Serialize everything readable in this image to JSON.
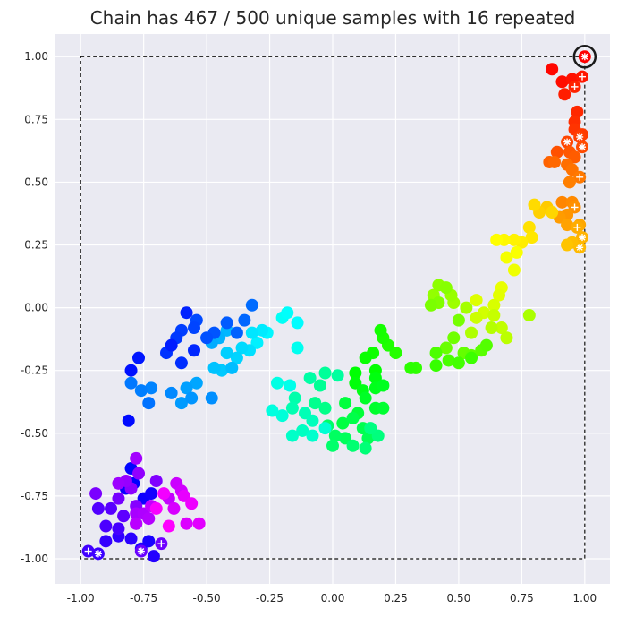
{
  "chart_data": {
    "type": "scatter",
    "title": "Chain has 467 / 500 unique samples with 16 repeated",
    "xlabel": "",
    "ylabel": "",
    "xlim": [
      -1.1,
      1.1
    ],
    "ylim": [
      -1.1,
      1.09
    ],
    "xticks": [
      "-1.00",
      "-0.75",
      "-0.50",
      "-0.25",
      "0.00",
      "0.25",
      "0.50",
      "0.75",
      "1.00"
    ],
    "yticks": [
      "-1.00",
      "-0.75",
      "-0.50",
      "-0.25",
      "0.00",
      "0.25",
      "0.50",
      "0.75",
      "1.00"
    ],
    "grid": true,
    "background_color": "#eaeaf2",
    "colormap": "hsv (by chain order)",
    "bounds": {
      "x": [
        -1,
        1
      ],
      "y": [
        -1,
        1
      ],
      "style": "dashed black"
    },
    "highlight": {
      "x": 1.0,
      "y": 1.0,
      "style": "black ring"
    },
    "repeat_markers": [
      "+",
      "*"
    ],
    "points": [
      [
        1.0,
        1.0,
        "*"
      ],
      [
        0.87,
        0.95
      ],
      [
        0.91,
        0.9
      ],
      [
        0.95,
        0.91
      ],
      [
        0.99,
        0.92,
        "+"
      ],
      [
        0.92,
        0.85
      ],
      [
        0.96,
        0.88,
        "+"
      ],
      [
        0.97,
        0.78
      ],
      [
        0.96,
        0.74
      ],
      [
        0.96,
        0.71
      ],
      [
        0.99,
        0.69
      ],
      [
        0.98,
        0.68,
        "*"
      ],
      [
        0.93,
        0.66,
        "*"
      ],
      [
        0.99,
        0.64,
        "*"
      ],
      [
        0.89,
        0.62
      ],
      [
        0.94,
        0.62
      ],
      [
        0.96,
        0.6
      ],
      [
        0.86,
        0.58
      ],
      [
        0.88,
        0.58
      ],
      [
        0.93,
        0.57
      ],
      [
        0.95,
        0.55
      ],
      [
        0.98,
        0.52,
        "+"
      ],
      [
        0.94,
        0.5
      ],
      [
        0.91,
        0.42
      ],
      [
        0.95,
        0.42
      ],
      [
        0.96,
        0.4,
        "+"
      ],
      [
        0.93,
        0.37
      ],
      [
        0.9,
        0.36
      ],
      [
        0.93,
        0.33
      ],
      [
        0.98,
        0.33
      ],
      [
        0.97,
        0.32,
        "+"
      ],
      [
        0.99,
        0.28,
        "*"
      ],
      [
        0.98,
        0.24,
        "*"
      ],
      [
        0.95,
        0.26
      ],
      [
        0.93,
        0.25
      ],
      [
        0.85,
        0.4
      ],
      [
        0.82,
        0.38
      ],
      [
        0.87,
        0.38
      ],
      [
        0.8,
        0.41
      ],
      [
        0.78,
        0.32
      ],
      [
        0.79,
        0.28
      ],
      [
        0.75,
        0.26
      ],
      [
        0.72,
        0.27
      ],
      [
        0.68,
        0.27
      ],
      [
        0.65,
        0.27
      ],
      [
        0.73,
        0.22
      ],
      [
        0.69,
        0.2
      ],
      [
        0.72,
        0.15
      ],
      [
        0.67,
        0.08
      ],
      [
        0.66,
        0.05
      ],
      [
        0.57,
        0.03
      ],
      [
        0.64,
        0.01
      ],
      [
        0.6,
        -0.02
      ],
      [
        0.57,
        -0.04
      ],
      [
        0.64,
        -0.03
      ],
      [
        0.67,
        -0.08
      ],
      [
        0.69,
        -0.12
      ],
      [
        0.63,
        -0.08
      ],
      [
        0.55,
        -0.1
      ],
      [
        0.78,
        -0.03
      ],
      [
        0.53,
        0.0
      ],
      [
        0.48,
        0.02
      ],
      [
        0.47,
        0.05
      ],
      [
        0.4,
        0.05
      ],
      [
        0.42,
        0.09
      ],
      [
        0.45,
        0.08
      ],
      [
        0.42,
        0.02
      ],
      [
        0.39,
        0.01
      ],
      [
        0.5,
        -0.05
      ],
      [
        0.48,
        -0.12
      ],
      [
        0.45,
        -0.16
      ],
      [
        0.52,
        -0.18
      ],
      [
        0.55,
        -0.19
      ],
      [
        0.59,
        -0.17
      ],
      [
        0.61,
        -0.15
      ],
      [
        0.41,
        -0.18
      ],
      [
        0.46,
        -0.21
      ],
      [
        0.5,
        -0.22
      ],
      [
        0.55,
        -0.2
      ],
      [
        0.41,
        -0.23
      ],
      [
        0.33,
        -0.24
      ],
      [
        0.31,
        -0.24
      ],
      [
        0.25,
        -0.18
      ],
      [
        0.22,
        -0.15
      ],
      [
        0.2,
        -0.12
      ],
      [
        0.19,
        -0.09
      ],
      [
        0.16,
        -0.18
      ],
      [
        0.13,
        -0.2
      ],
      [
        0.17,
        -0.25
      ],
      [
        0.09,
        -0.26
      ],
      [
        0.09,
        -0.3
      ],
      [
        0.17,
        -0.28
      ],
      [
        0.12,
        -0.33
      ],
      [
        0.17,
        -0.32
      ],
      [
        0.2,
        -0.31
      ],
      [
        0.13,
        -0.36
      ],
      [
        0.17,
        -0.4
      ],
      [
        0.2,
        -0.4
      ],
      [
        0.1,
        -0.42
      ],
      [
        0.05,
        -0.38
      ],
      [
        0.04,
        -0.46
      ],
      [
        0.08,
        -0.44
      ],
      [
        0.12,
        -0.48
      ],
      [
        0.14,
        -0.52
      ],
      [
        0.05,
        -0.52
      ],
      [
        0.01,
        -0.51
      ],
      [
        -0.02,
        -0.47
      ],
      [
        0.0,
        -0.55
      ],
      [
        0.08,
        -0.55
      ],
      [
        0.13,
        -0.56
      ],
      [
        0.18,
        -0.51
      ],
      [
        0.15,
        -0.48
      ],
      [
        -0.03,
        -0.4
      ],
      [
        -0.07,
        -0.38
      ],
      [
        -0.05,
        -0.31
      ],
      [
        -0.03,
        -0.26
      ],
      [
        0.02,
        -0.27
      ],
      [
        -0.09,
        -0.28
      ],
      [
        -0.15,
        -0.36
      ],
      [
        -0.16,
        -0.4
      ],
      [
        -0.11,
        -0.42
      ],
      [
        -0.08,
        -0.45
      ],
      [
        -0.12,
        -0.49
      ],
      [
        -0.16,
        -0.51
      ],
      [
        -0.08,
        -0.51
      ],
      [
        -0.03,
        -0.48
      ],
      [
        -0.2,
        -0.43
      ],
      [
        -0.24,
        -0.41
      ],
      [
        -0.22,
        -0.3
      ],
      [
        -0.17,
        -0.31
      ],
      [
        -0.14,
        -0.16
      ],
      [
        -0.2,
        -0.04
      ],
      [
        -0.18,
        -0.02
      ],
      [
        -0.14,
        -0.06
      ],
      [
        -0.26,
        -0.1
      ],
      [
        -0.3,
        -0.14
      ],
      [
        -0.28,
        -0.09
      ],
      [
        -0.32,
        -0.1
      ],
      [
        -0.33,
        -0.17
      ],
      [
        -0.36,
        -0.16
      ],
      [
        -0.38,
        -0.2
      ],
      [
        -0.42,
        -0.18
      ],
      [
        -0.44,
        -0.25
      ],
      [
        -0.47,
        -0.24
      ],
      [
        -0.4,
        -0.24
      ],
      [
        -0.42,
        -0.09
      ],
      [
        -0.45,
        -0.12
      ],
      [
        -0.48,
        -0.14
      ],
      [
        -0.54,
        -0.3
      ],
      [
        -0.58,
        -0.32
      ],
      [
        -0.6,
        -0.38
      ],
      [
        -0.56,
        -0.36
      ],
      [
        -0.48,
        -0.36
      ],
      [
        -0.64,
        -0.34
      ],
      [
        -0.72,
        -0.32
      ],
      [
        -0.76,
        -0.33
      ],
      [
        -0.8,
        -0.3
      ],
      [
        -0.73,
        -0.38
      ],
      [
        -0.32,
        0.01
      ],
      [
        -0.35,
        -0.05
      ],
      [
        -0.38,
        -0.1
      ],
      [
        -0.42,
        -0.06
      ],
      [
        -0.47,
        -0.1
      ],
      [
        -0.5,
        -0.12
      ],
      [
        -0.54,
        -0.05
      ],
      [
        -0.55,
        -0.08
      ],
      [
        -0.6,
        -0.09
      ],
      [
        -0.62,
        -0.12
      ],
      [
        -0.66,
        -0.18
      ],
      [
        -0.6,
        -0.22
      ],
      [
        -0.55,
        -0.17
      ],
      [
        -0.58,
        -0.02
      ],
      [
        -0.64,
        -0.15
      ],
      [
        -0.77,
        -0.2
      ],
      [
        -0.8,
        -0.25
      ],
      [
        -0.81,
        -0.45
      ],
      [
        -0.8,
        -0.64
      ],
      [
        -0.79,
        -0.7
      ],
      [
        -0.82,
        -0.72
      ],
      [
        -0.75,
        -0.76
      ],
      [
        -0.72,
        -0.74
      ],
      [
        -0.73,
        -0.93
      ],
      [
        -0.76,
        -0.96
      ],
      [
        -0.71,
        -0.99
      ],
      [
        -0.8,
        -0.92
      ],
      [
        -0.85,
        -0.91
      ],
      [
        -0.9,
        -0.93
      ],
      [
        -0.93,
        -0.98,
        "*"
      ],
      [
        -0.97,
        -0.97,
        "+"
      ],
      [
        -0.85,
        -0.88
      ],
      [
        -0.9,
        -0.87
      ],
      [
        -0.93,
        -0.8
      ],
      [
        -0.88,
        -0.8
      ],
      [
        -0.83,
        -0.83
      ],
      [
        -0.78,
        -0.86
      ],
      [
        -0.76,
        -0.97,
        "*"
      ],
      [
        -0.68,
        -0.94,
        "+"
      ],
      [
        -0.85,
        -0.76
      ],
      [
        -0.94,
        -0.74
      ],
      [
        -0.7,
        -0.69
      ],
      [
        -0.78,
        -0.79
      ],
      [
        -0.8,
        -0.72
      ],
      [
        -0.77,
        -0.66
      ],
      [
        -0.82,
        -0.69
      ],
      [
        -0.85,
        -0.7
      ],
      [
        -0.78,
        -0.6
      ],
      [
        -0.78,
        -0.82
      ],
      [
        -0.75,
        -0.82
      ],
      [
        -0.73,
        -0.84
      ],
      [
        -0.78,
        -0.86
      ],
      [
        -0.72,
        -0.79
      ],
      [
        -0.65,
        -0.76
      ],
      [
        -0.62,
        -0.7
      ],
      [
        -0.6,
        -0.73
      ],
      [
        -0.63,
        -0.8
      ],
      [
        -0.58,
        -0.86
      ],
      [
        -0.53,
        -0.86
      ],
      [
        -0.59,
        -0.75
      ],
      [
        -0.56,
        -0.78
      ],
      [
        -0.67,
        -0.74
      ],
      [
        -0.7,
        -0.8
      ],
      [
        -0.65,
        -0.87
      ]
    ]
  }
}
